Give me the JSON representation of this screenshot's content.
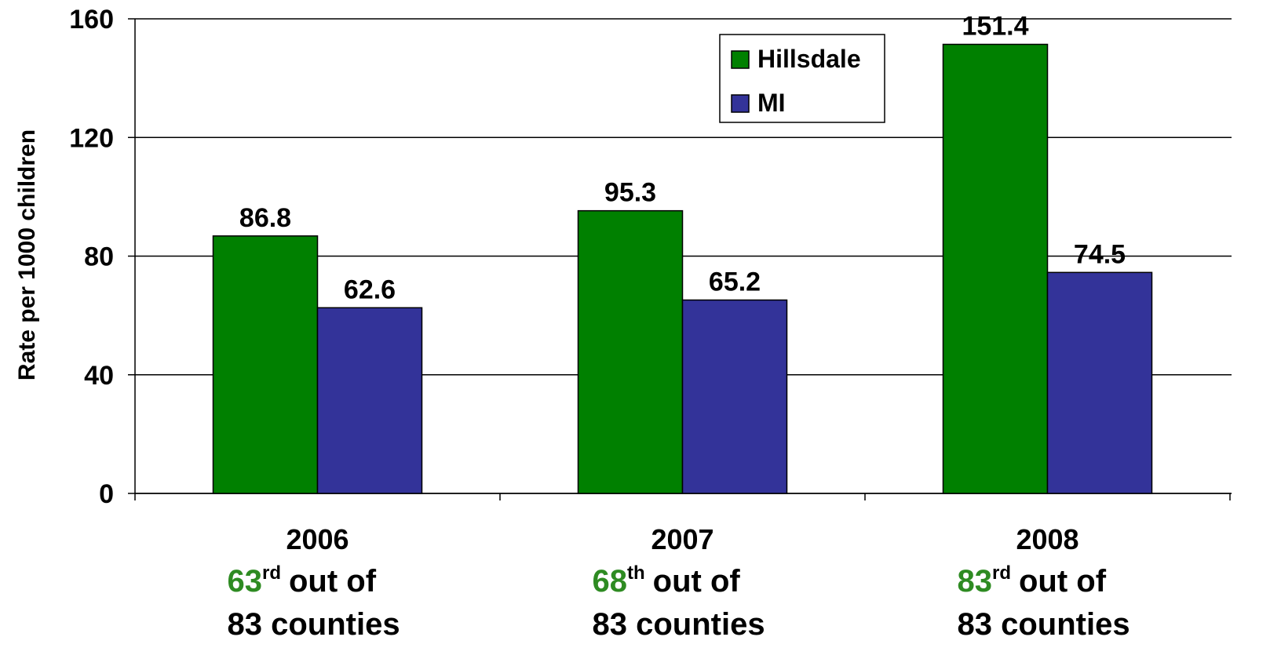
{
  "chart_data": {
    "type": "bar",
    "y_axis_label": "Rate per 1000 children",
    "categories": [
      "2006",
      "2007",
      "2008"
    ],
    "category_notes": [
      {
        "rank": "63",
        "suffix": "rd",
        "text": "out of",
        "line2": "83 counties"
      },
      {
        "rank": "68",
        "suffix": "th",
        "text": "out of",
        "line2": "83 counties"
      },
      {
        "rank": "83",
        "suffix": "rd",
        "text": "out of",
        "line2": "83 counties"
      }
    ],
    "rank_color": "#2e8b22",
    "series": [
      {
        "name": "Hillsdale",
        "color": "#008000",
        "values": [
          86.8,
          95.3,
          151.4
        ]
      },
      {
        "name": "MI",
        "color": "#333399",
        "values": [
          62.6,
          65.2,
          74.5
        ]
      }
    ],
    "ylim": [
      0,
      160
    ],
    "yticks": [
      0,
      40,
      80,
      120,
      160
    ],
    "grid": true,
    "legend": "top-right"
  }
}
